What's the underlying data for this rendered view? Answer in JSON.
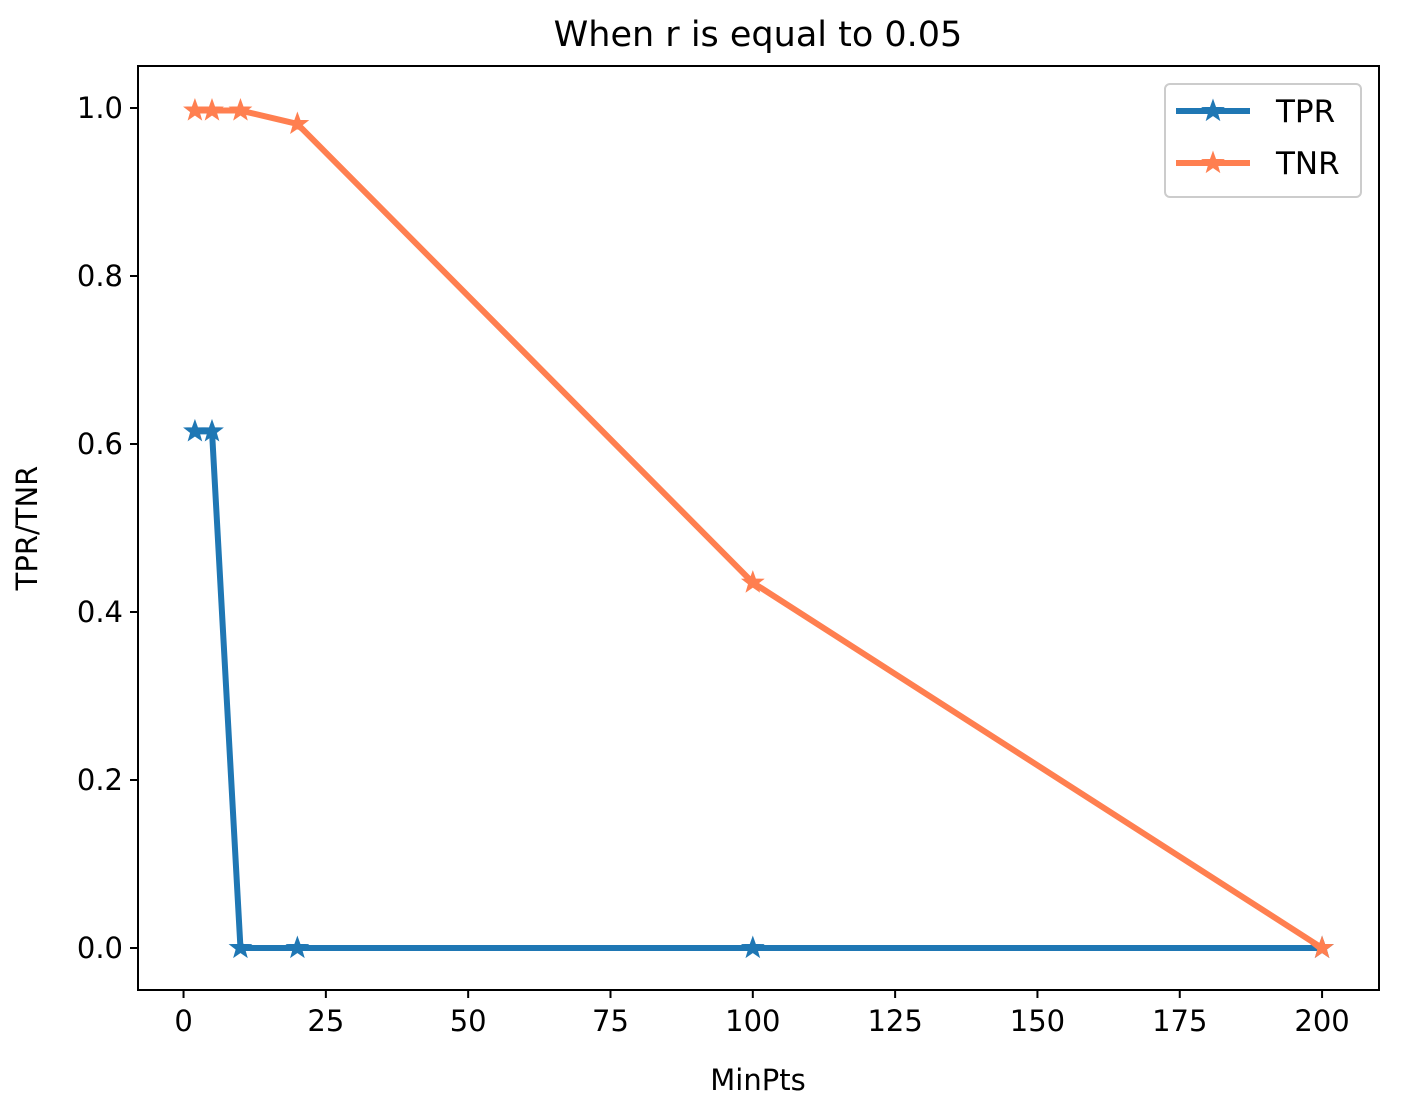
{
  "chart_data": {
    "type": "line",
    "title": "When r is equal to 0.05",
    "xlabel": "MinPts",
    "ylabel": "TPR/TNR",
    "xlim": [
      -8,
      210
    ],
    "ylim": [
      -0.05,
      1.05
    ],
    "xticks": [
      0,
      25,
      50,
      75,
      100,
      125,
      150,
      175,
      200
    ],
    "xtick_labels": [
      "0",
      "25",
      "50",
      "75",
      "100",
      "125",
      "150",
      "175",
      "200"
    ],
    "yticks": [
      0.0,
      0.2,
      0.4,
      0.6,
      0.8,
      1.0
    ],
    "ytick_labels": [
      "0.0",
      "0.2",
      "0.4",
      "0.6",
      "0.8",
      "1.0"
    ],
    "grid": false,
    "legend_position": "top-right",
    "x": [
      2,
      5,
      10,
      20,
      100,
      200
    ],
    "series": [
      {
        "name": "TPR",
        "color": "#1f77b4",
        "marker": "star",
        "values": [
          0.615,
          0.615,
          0.0,
          0.0,
          0.0,
          0.0
        ]
      },
      {
        "name": "TNR",
        "color": "#ff7f50",
        "marker": "star",
        "values": [
          0.997,
          0.997,
          0.997,
          0.981,
          0.435,
          0.0
        ]
      }
    ]
  }
}
